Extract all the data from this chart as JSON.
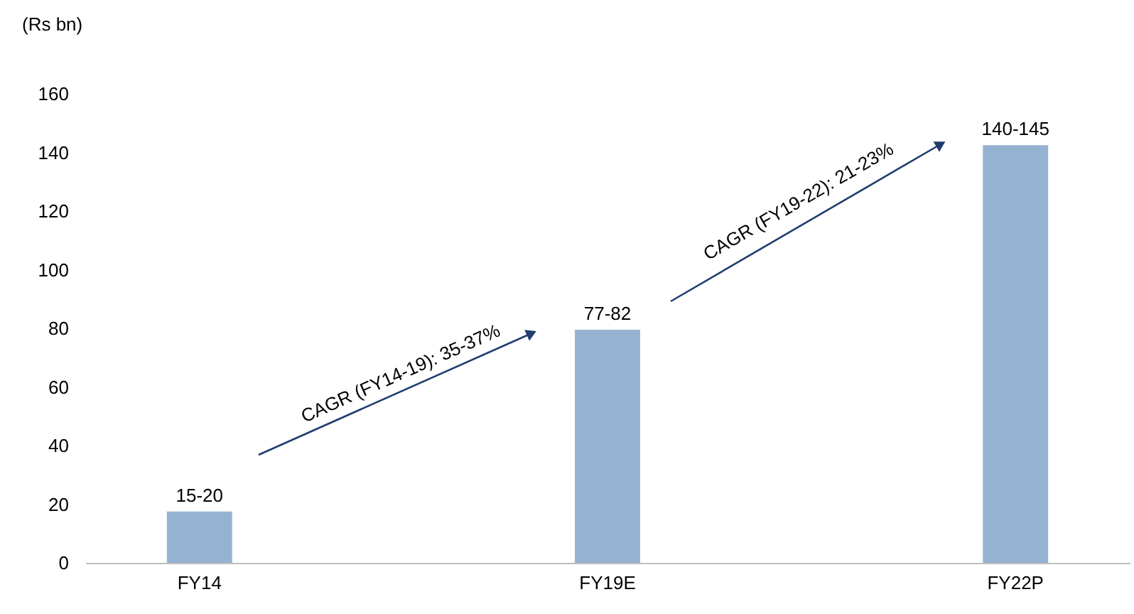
{
  "chart_data": {
    "type": "bar",
    "ylabel": "(Rs bn)",
    "categories": [
      "FY14",
      "FY19E",
      "FY22P"
    ],
    "values": [
      17.5,
      79.5,
      142.5
    ],
    "value_labels": [
      "15-20",
      "77-82",
      "140-145"
    ],
    "color": "#95b3d0",
    "ylim": [
      0,
      160
    ],
    "yticks": [
      0,
      20,
      40,
      60,
      80,
      100,
      120,
      140,
      160
    ],
    "grid": false,
    "annotations": [
      "CAGR (FY14-19): 35-37%",
      "CAGR (FY19-22): 21-23%"
    ]
  }
}
